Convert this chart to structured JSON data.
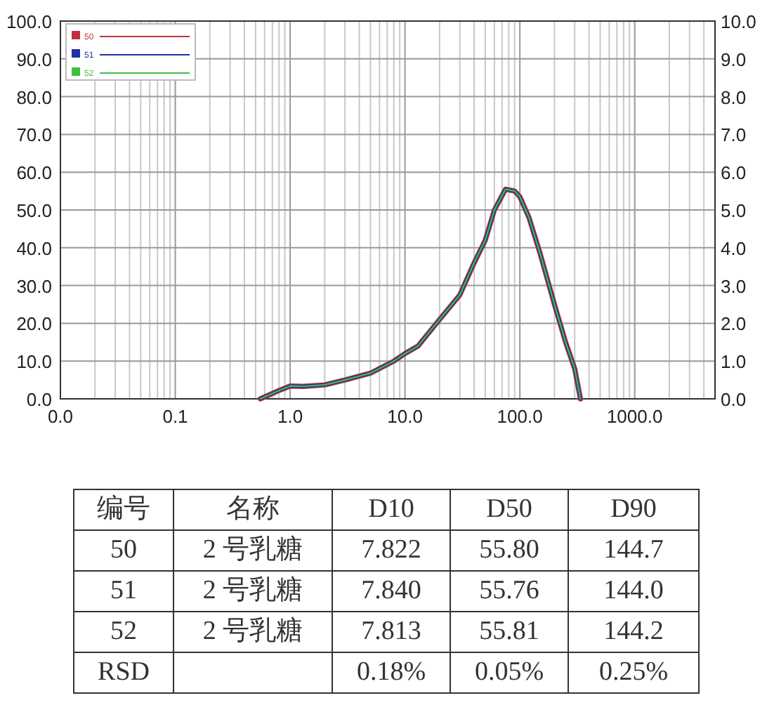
{
  "chart_data": [
    {
      "type": "line",
      "x": [
        0.55,
        0.8,
        1.0,
        1.3,
        2.0,
        3.0,
        5.0,
        8.0,
        10.0,
        13.0,
        20.0,
        30.0,
        40.0,
        50.0,
        60.0,
        75.0,
        90.0,
        100.0,
        120.0,
        150.0,
        200.0,
        250.0,
        300.0,
        337.0
      ],
      "series": [
        {
          "name": "50",
          "color": "#c03040",
          "values": [
            0,
            2.2,
            3.4,
            3.3,
            3.7,
            5,
            6.8,
            10,
            12,
            14,
            21,
            27.5,
            36,
            42,
            50,
            55.5,
            55,
            53.5,
            48,
            38.5,
            25,
            15,
            8,
            0
          ]
        },
        {
          "name": "51",
          "color": "#2030a0",
          "values": [
            0,
            2.2,
            3.4,
            3.3,
            3.7,
            5,
            6.8,
            10,
            12,
            14,
            21,
            27.5,
            36,
            42,
            50,
            55.5,
            55,
            53.5,
            48,
            38.5,
            25,
            15,
            8,
            0
          ]
        },
        {
          "name": "52",
          "color": "#40c040",
          "values": [
            0,
            2.2,
            3.4,
            3.3,
            3.7,
            5,
            6.8,
            10,
            12,
            14,
            21,
            27.5,
            36,
            42,
            50,
            55.5,
            55,
            53.5,
            48,
            38.5,
            25,
            15,
            8,
            0
          ]
        }
      ],
      "log": "x",
      "xlim": [
        0.01,
        5000
      ],
      "xticks": [
        {
          "value": 0.01,
          "label": "0.0"
        },
        0.1,
        {
          "value": 1,
          "label": "1.0"
        },
        {
          "value": 10,
          "label": "10.0"
        },
        {
          "value": 100,
          "label": "100.0"
        },
        {
          "value": 1000,
          "label": "1000.0"
        }
      ],
      "ylim": [
        0,
        100
      ],
      "yticks": [
        {
          "value": 0,
          "label": "0.0"
        },
        {
          "value": 10,
          "label": "10.0"
        },
        {
          "value": 20,
          "label": "20.0"
        },
        {
          "value": 30,
          "label": "30.0"
        },
        {
          "value": 40,
          "label": "40.0"
        },
        {
          "value": 50,
          "label": "50.0"
        },
        {
          "value": 60,
          "label": "60.0"
        },
        {
          "value": 70,
          "label": "70.0"
        },
        {
          "value": 80,
          "label": "80.0"
        },
        {
          "value": 90,
          "label": "90.0"
        },
        {
          "value": 100,
          "label": "100.0"
        }
      ],
      "y2lim": [
        0,
        10
      ],
      "y2ticks": [
        {
          "value": 0,
          "label": "0.0"
        },
        {
          "value": 1,
          "label": "1.0"
        },
        {
          "value": 2,
          "label": "2.0"
        },
        {
          "value": 3,
          "label": "3.0"
        },
        {
          "value": 4,
          "label": "4.0"
        },
        {
          "value": 5,
          "label": "5.0"
        },
        {
          "value": 6,
          "label": "6.0"
        },
        {
          "value": 7,
          "label": "7.0"
        },
        {
          "value": 8,
          "label": "8.0"
        },
        {
          "value": 9,
          "label": "9.0"
        },
        {
          "value": 10,
          "label": "10.0"
        }
      ],
      "grid": true,
      "legend": "top left"
    },
    {
      "type": "other",
      "categories": [
        "编号",
        "名称",
        "D10",
        "D50",
        "D90"
      ],
      "y_categories": [
        "50",
        "51",
        "52",
        "RSD"
      ],
      "cell_labels": [
        [
          "2 号乳糖",
          "7.822",
          "55.80",
          "144.7"
        ],
        [
          "2 号乳糖",
          "7.840",
          "55.76",
          "144.0"
        ],
        [
          "2 号乳糖",
          "7.813",
          "55.81",
          "144.2"
        ],
        [
          null,
          "0.18%",
          "0.05%",
          "0.25%"
        ]
      ]
    }
  ]
}
